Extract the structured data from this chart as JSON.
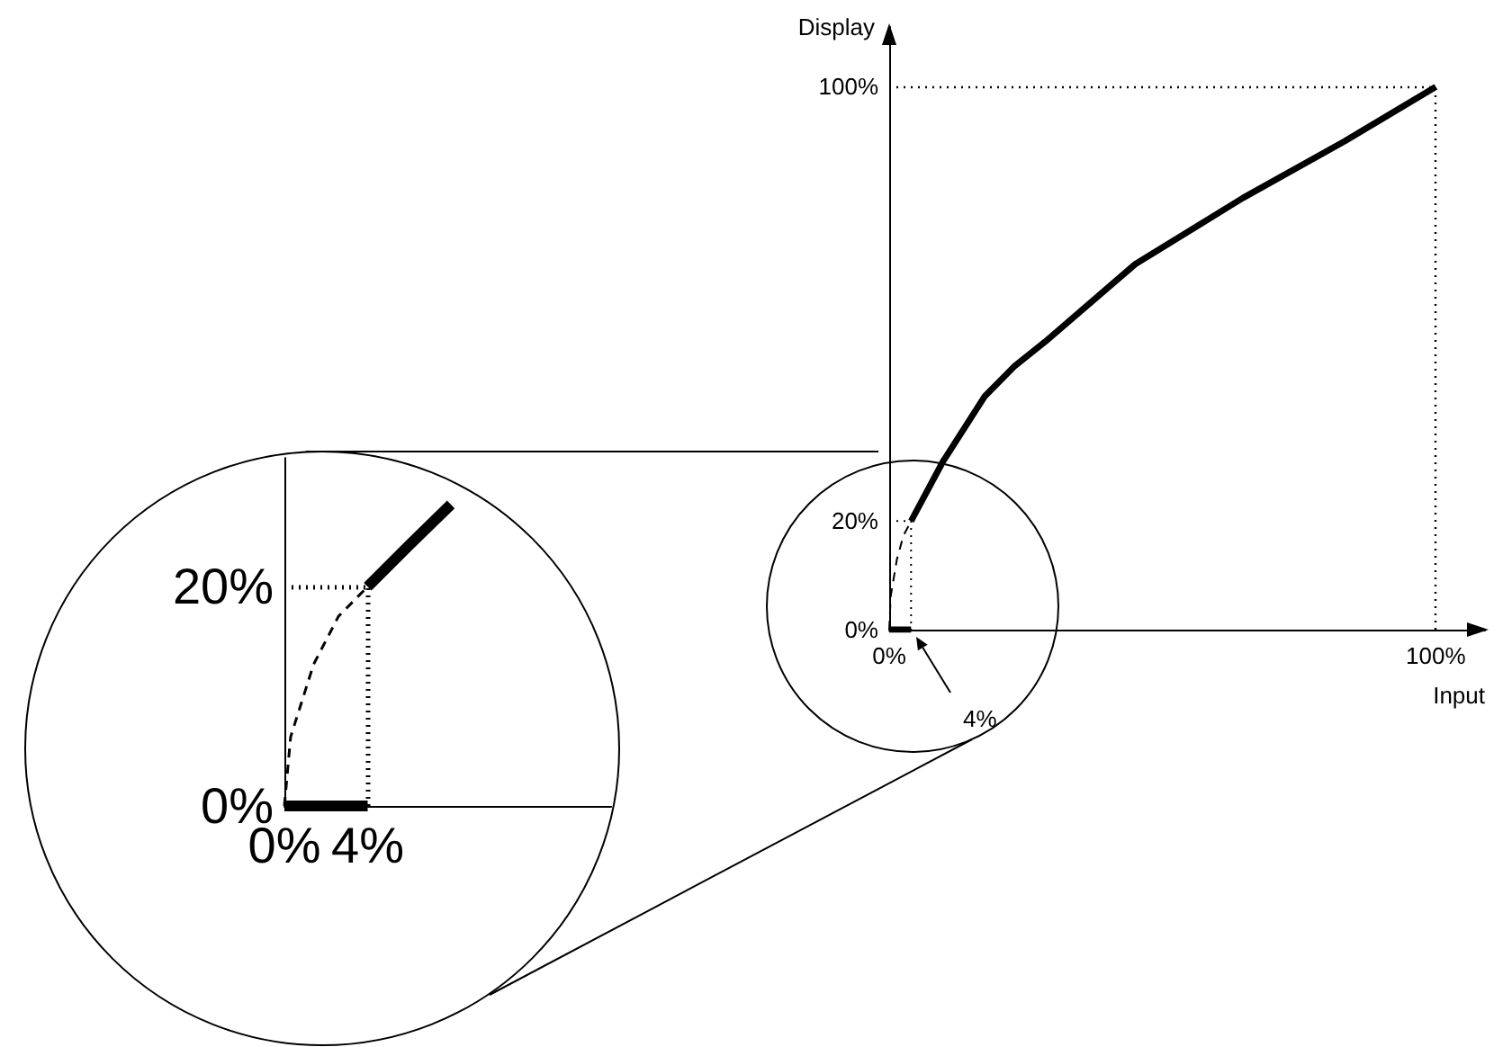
{
  "chart_data": [
    {
      "type": "line",
      "xlabel": "Input",
      "ylabel": "Display",
      "marker": "none",
      "xlim": [
        0,
        109
      ],
      "ylim": [
        0,
        111
      ],
      "xticks": [
        {
          "value": 0,
          "label": "0%"
        },
        {
          "value": 100,
          "label": "100%"
        }
      ],
      "yticks": [
        {
          "value": 0,
          "label": "0%"
        },
        {
          "value": 20,
          "label": "20%"
        },
        {
          "value": 100,
          "label": "100%"
        }
      ],
      "series": [
        {
          "color": "#000000",
          "line_style": "solid",
          "x": [
            0,
            4
          ],
          "values": [
            0,
            0
          ]
        },
        {
          "color": "#000000",
          "line_style": "dashed",
          "x": [
            0,
            0.3,
            1.4,
            2.6,
            4
          ],
          "values": [
            0,
            6.3,
            12.9,
            17.3,
            20
          ]
        },
        {
          "color": "#000000",
          "line_style": "solid",
          "x": [
            4,
            9.8,
            17.5,
            23,
            28.5,
            45,
            64.7,
            83.4,
            100
          ],
          "values": [
            20,
            30.9,
            43,
            48.6,
            53,
            67.3,
            79.5,
            90,
            100
          ]
        },
        {
          "color": "#000000",
          "line_style": "dotted",
          "x": [
            0,
            4,
            4
          ],
          "values": [
            20,
            20,
            0
          ]
        }
      ],
      "ref_lines": [
        {
          "axis": "x",
          "value": 100,
          "color": "#000000",
          "line_style": "dotted"
        },
        {
          "axis": "y",
          "value": 100,
          "color": "#000000",
          "line_style": "dotted"
        }
      ],
      "annotations": [
        "4%"
      ]
    },
    {
      "type": "line",
      "marker": "none",
      "xlim": [
        0,
        16
      ],
      "ylim": [
        0,
        32
      ],
      "xticks": [
        {
          "value": 0,
          "label": "0%"
        },
        {
          "value": 4,
          "label": "4%"
        }
      ],
      "yticks": [
        {
          "value": 0,
          "label": "0%"
        },
        {
          "value": 20,
          "label": "20%"
        }
      ],
      "series": [
        {
          "color": "#000000",
          "line_style": "solid",
          "x": [
            0,
            4
          ],
          "values": [
            0,
            0
          ]
        },
        {
          "color": "#000000",
          "line_style": "dashed",
          "x": [
            0,
            0.3,
            1.4,
            2.6,
            4
          ],
          "values": [
            0,
            6.3,
            12.9,
            17.3,
            20
          ]
        },
        {
          "color": "#000000",
          "line_style": "solid",
          "x": [
            4,
            6,
            8
          ],
          "values": [
            20,
            23.8,
            27.5
          ]
        }
      ],
      "ref_lines": [
        {
          "axis": "x",
          "value": 4,
          "color": "#000000",
          "line_style": "dotted"
        },
        {
          "axis": "y",
          "value": 20,
          "color": "#000000",
          "line_style": "dotted"
        }
      ]
    }
  ]
}
